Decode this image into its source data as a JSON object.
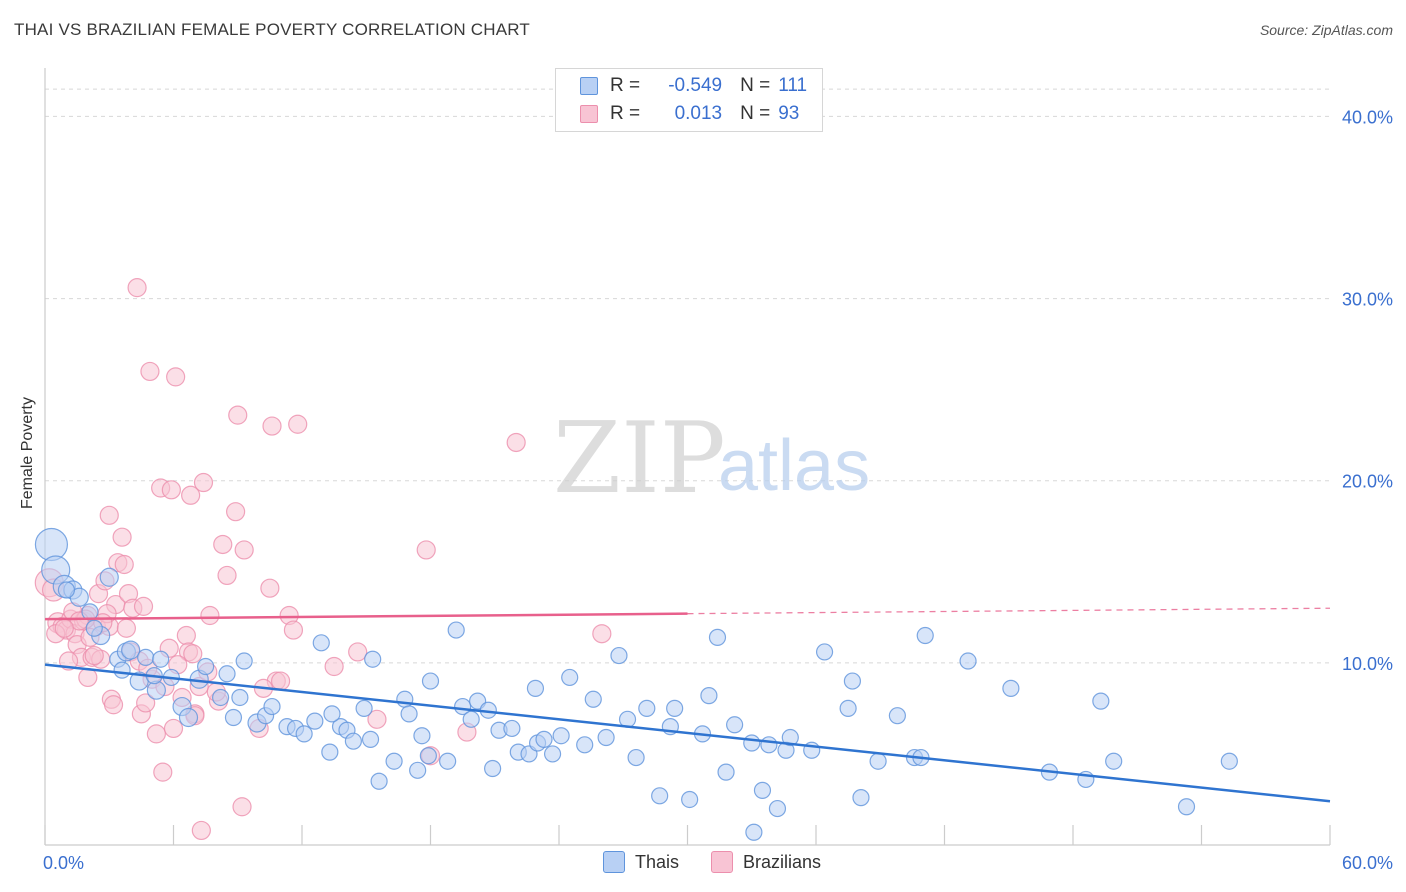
{
  "title": "THAI VS BRAZILIAN FEMALE POVERTY CORRELATION CHART",
  "source": "Source: ZipAtlas.com",
  "watermark": {
    "zip": "ZIP",
    "atlas": "atlas"
  },
  "legend_top": [
    {
      "r_label": "R =",
      "r_value": "-0.549",
      "n_label": "N =",
      "n_value": "111"
    },
    {
      "r_label": "R =",
      "r_value": "0.013",
      "n_label": "N =",
      "n_value": "93"
    }
  ],
  "legend_bottom": [
    {
      "label": "Thais"
    },
    {
      "label": "Brazilians"
    }
  ],
  "colors": {
    "thais_fill": "#b8d0f4",
    "thais_stroke": "#5f94dc",
    "thais_line": "#2f74d0",
    "braz_fill": "#f8c4d4",
    "braz_stroke": "#ec8fad",
    "braz_line": "#e8608c",
    "grid": "#d8d8d8",
    "tick_label": "#3a6fcf",
    "watermark": "#cfcfcf",
    "watermark_atlas": "#b9cfee"
  },
  "chart_data": {
    "type": "scatter",
    "title": "THAI VS BRAZILIAN FEMALE POVERTY CORRELATION CHART",
    "xlabel": "",
    "ylabel": "Female Poverty",
    "xlim": [
      0,
      60
    ],
    "ylim": [
      0,
      42
    ],
    "x_tick_labels": [
      "0.0%",
      "60.0%"
    ],
    "y_ticks": [
      10,
      20,
      30,
      40
    ],
    "y_tick_labels": [
      "10.0%",
      "20.0%",
      "30.0%",
      "40.0%"
    ],
    "grid": true,
    "legend": "top-center",
    "series": [
      {
        "name": "Thais",
        "r": -0.549,
        "n": 111,
        "trend": {
          "x": [
            0,
            60
          ],
          "y": [
            9.9,
            2.4
          ],
          "dashed_from": null
        },
        "points": [
          [
            0.3,
            16.5,
            16
          ],
          [
            0.5,
            15.1,
            14
          ],
          [
            0.9,
            14.2,
            11
          ],
          [
            1.3,
            14.0,
            9
          ],
          [
            1.6,
            13.6,
            9
          ],
          [
            2.1,
            12.8,
            8
          ],
          [
            2.6,
            11.5,
            9
          ],
          [
            3.0,
            14.7,
            9
          ],
          [
            3.4,
            10.2,
            8
          ],
          [
            3.8,
            10.6,
            9
          ],
          [
            4.0,
            10.7,
            9
          ],
          [
            4.4,
            9.0,
            9
          ],
          [
            4.7,
            10.3,
            8
          ],
          [
            5.2,
            8.5,
            9
          ],
          [
            5.4,
            10.2,
            8
          ],
          [
            5.9,
            9.2,
            8
          ],
          [
            6.4,
            7.6,
            9
          ],
          [
            6.7,
            7.0,
            9
          ],
          [
            7.2,
            9.1,
            9
          ],
          [
            7.5,
            9.8,
            8
          ],
          [
            8.2,
            8.1,
            8
          ],
          [
            8.8,
            7.0,
            8
          ],
          [
            9.1,
            8.1,
            8
          ],
          [
            9.3,
            10.1,
            8
          ],
          [
            9.9,
            6.7,
            9
          ],
          [
            10.3,
            7.1,
            8
          ],
          [
            10.6,
            7.6,
            8
          ],
          [
            11.3,
            6.5,
            8
          ],
          [
            11.7,
            6.4,
            8
          ],
          [
            12.1,
            6.1,
            8
          ],
          [
            12.6,
            6.8,
            8
          ],
          [
            12.9,
            11.1,
            8
          ],
          [
            13.3,
            5.1,
            8
          ],
          [
            13.8,
            6.5,
            8
          ],
          [
            14.1,
            6.3,
            8
          ],
          [
            14.4,
            5.7,
            8
          ],
          [
            14.9,
            7.5,
            8
          ],
          [
            15.2,
            5.8,
            8
          ],
          [
            15.3,
            10.2,
            8
          ],
          [
            15.6,
            3.5,
            8
          ],
          [
            16.3,
            4.6,
            8
          ],
          [
            16.8,
            8.0,
            8
          ],
          [
            17.0,
            7.2,
            8
          ],
          [
            17.4,
            4.1,
            8
          ],
          [
            17.9,
            4.9,
            8
          ],
          [
            18.0,
            9.0,
            8
          ],
          [
            18.8,
            4.6,
            8
          ],
          [
            19.2,
            11.8,
            8
          ],
          [
            19.5,
            7.6,
            8
          ],
          [
            19.9,
            6.9,
            8
          ],
          [
            20.2,
            7.9,
            8
          ],
          [
            20.7,
            7.4,
            8
          ],
          [
            20.9,
            4.2,
            8
          ],
          [
            21.2,
            6.3,
            8
          ],
          [
            21.8,
            6.4,
            8
          ],
          [
            22.1,
            5.1,
            8
          ],
          [
            22.6,
            5.0,
            8
          ],
          [
            23.0,
            5.6,
            8
          ],
          [
            23.3,
            5.8,
            8
          ],
          [
            23.7,
            5.0,
            8
          ],
          [
            24.1,
            6.0,
            8
          ],
          [
            24.5,
            9.2,
            8
          ],
          [
            25.2,
            5.5,
            8
          ],
          [
            25.6,
            8.0,
            8
          ],
          [
            26.2,
            5.9,
            8
          ],
          [
            26.8,
            10.4,
            8
          ],
          [
            27.2,
            6.9,
            8
          ],
          [
            27.6,
            4.8,
            8
          ],
          [
            28.1,
            7.5,
            8
          ],
          [
            28.7,
            2.7,
            8
          ],
          [
            29.2,
            6.5,
            8
          ],
          [
            29.4,
            7.5,
            8
          ],
          [
            30.1,
            2.5,
            8
          ],
          [
            30.7,
            6.1,
            8
          ],
          [
            31.4,
            11.4,
            8
          ],
          [
            31.8,
            4.0,
            8
          ],
          [
            32.2,
            6.6,
            8
          ],
          [
            33.0,
            5.6,
            8
          ],
          [
            33.5,
            3.0,
            8
          ],
          [
            33.8,
            5.5,
            8
          ],
          [
            34.2,
            2.0,
            8
          ],
          [
            34.6,
            5.2,
            8
          ],
          [
            34.8,
            5.9,
            8
          ],
          [
            35.8,
            5.2,
            8
          ],
          [
            36.4,
            10.6,
            8
          ],
          [
            37.5,
            7.5,
            8
          ],
          [
            37.7,
            9.0,
            8
          ],
          [
            38.1,
            2.6,
            8
          ],
          [
            38.9,
            4.6,
            8
          ],
          [
            39.8,
            7.1,
            8
          ],
          [
            40.6,
            4.8,
            8
          ],
          [
            40.9,
            4.8,
            8
          ],
          [
            41.1,
            11.5,
            8
          ],
          [
            43.1,
            10.1,
            8
          ],
          [
            45.1,
            8.6,
            8
          ],
          [
            46.9,
            4.0,
            8
          ],
          [
            48.6,
            3.6,
            8
          ],
          [
            49.3,
            7.9,
            8
          ],
          [
            49.9,
            4.6,
            8
          ],
          [
            53.3,
            2.1,
            8
          ],
          [
            55.3,
            4.6,
            8
          ],
          [
            33.1,
            0.7,
            8
          ],
          [
            5.1,
            9.3,
            8
          ],
          [
            2.3,
            11.9,
            8
          ],
          [
            1.0,
            14.0,
            8
          ],
          [
            3.6,
            9.6,
            8
          ],
          [
            8.5,
            9.4,
            8
          ],
          [
            13.4,
            7.2,
            8
          ],
          [
            17.6,
            6.0,
            8
          ],
          [
            22.9,
            8.6,
            8
          ],
          [
            31.0,
            8.2,
            8
          ]
        ]
      },
      {
        "name": "Brazilians",
        "r": 0.013,
        "n": 93,
        "trend": {
          "x": [
            0,
            60
          ],
          "y": [
            12.4,
            13.0
          ],
          "dashed_from": 30
        },
        "points": [
          [
            0.2,
            14.4,
            14
          ],
          [
            0.4,
            14.0,
            11
          ],
          [
            0.6,
            12.2,
            10
          ],
          [
            0.8,
            12.0,
            9
          ],
          [
            1.0,
            11.8,
            9
          ],
          [
            1.2,
            12.4,
            9
          ],
          [
            1.4,
            11.6,
            9
          ],
          [
            1.5,
            11.0,
            9
          ],
          [
            1.7,
            10.3,
            9
          ],
          [
            1.8,
            12.3,
            9
          ],
          [
            2.0,
            12.6,
            9
          ],
          [
            2.2,
            10.3,
            9
          ],
          [
            2.4,
            12.0,
            9
          ],
          [
            2.5,
            13.8,
            9
          ],
          [
            2.6,
            10.2,
            9
          ],
          [
            2.8,
            14.5,
            9
          ],
          [
            3.0,
            12.0,
            9
          ],
          [
            3.1,
            8.0,
            9
          ],
          [
            3.3,
            13.2,
            9
          ],
          [
            3.4,
            15.5,
            9
          ],
          [
            3.6,
            16.9,
            9
          ],
          [
            3.8,
            11.9,
            9
          ],
          [
            3.9,
            13.8,
            9
          ],
          [
            4.0,
            10.6,
            9
          ],
          [
            4.1,
            13.0,
            9
          ],
          [
            4.3,
            30.6,
            9
          ],
          [
            4.5,
            7.2,
            9
          ],
          [
            4.7,
            7.8,
            9
          ],
          [
            4.9,
            26.0,
            9
          ],
          [
            5.0,
            9.1,
            9
          ],
          [
            5.2,
            6.1,
            9
          ],
          [
            5.4,
            19.6,
            9
          ],
          [
            5.6,
            8.7,
            9
          ],
          [
            5.8,
            10.8,
            9
          ],
          [
            5.9,
            19.5,
            9
          ],
          [
            6.0,
            6.4,
            9
          ],
          [
            6.1,
            25.7,
            9
          ],
          [
            6.4,
            8.1,
            9
          ],
          [
            6.6,
            11.5,
            9
          ],
          [
            6.7,
            10.6,
            9
          ],
          [
            6.8,
            19.2,
            9
          ],
          [
            7.0,
            7.2,
            9
          ],
          [
            7.2,
            8.7,
            9
          ],
          [
            7.4,
            19.9,
            9
          ],
          [
            7.6,
            9.5,
            9
          ],
          [
            7.7,
            12.6,
            9
          ],
          [
            8.1,
            7.9,
            9
          ],
          [
            8.3,
            16.5,
            9
          ],
          [
            8.5,
            14.8,
            9
          ],
          [
            8.9,
            18.3,
            9
          ],
          [
            9.0,
            23.6,
            9
          ],
          [
            9.3,
            16.2,
            9
          ],
          [
            10.0,
            6.4,
            9
          ],
          [
            10.5,
            14.1,
            9
          ],
          [
            10.6,
            23.0,
            9
          ],
          [
            10.8,
            9.0,
            9
          ],
          [
            11.4,
            12.6,
            9
          ],
          [
            11.6,
            11.8,
            9
          ],
          [
            11.8,
            23.1,
            9
          ],
          [
            13.5,
            9.8,
            9
          ],
          [
            14.6,
            10.6,
            9
          ],
          [
            15.5,
            6.9,
            9
          ],
          [
            17.8,
            16.2,
            9
          ],
          [
            18.0,
            4.9,
            9
          ],
          [
            19.7,
            6.2,
            9
          ],
          [
            22.0,
            22.1,
            9
          ],
          [
            26.0,
            11.6,
            9
          ],
          [
            3.0,
            18.1,
            9
          ],
          [
            2.9,
            12.7,
            9
          ],
          [
            4.6,
            13.1,
            9
          ],
          [
            5.5,
            4.0,
            9
          ],
          [
            7.3,
            0.8,
            9
          ],
          [
            9.2,
            2.1,
            9
          ],
          [
            1.1,
            10.1,
            9
          ],
          [
            2.0,
            9.2,
            9
          ],
          [
            3.7,
            15.4,
            9
          ],
          [
            1.3,
            12.8,
            9
          ],
          [
            0.5,
            11.6,
            9
          ],
          [
            1.9,
            12.4,
            9
          ],
          [
            2.7,
            12.2,
            9
          ],
          [
            4.4,
            10.1,
            9
          ],
          [
            6.2,
            9.9,
            9
          ],
          [
            7.0,
            7.1,
            9
          ],
          [
            8.0,
            8.4,
            9
          ],
          [
            3.2,
            7.7,
            9
          ],
          [
            10.2,
            8.6,
            9
          ],
          [
            1.6,
            12.3,
            9
          ],
          [
            2.1,
            11.4,
            9
          ],
          [
            0.9,
            11.9,
            9
          ],
          [
            2.3,
            10.4,
            9
          ],
          [
            11.0,
            9.0,
            9
          ],
          [
            4.8,
            9.7,
            9
          ],
          [
            6.9,
            10.5,
            9
          ]
        ]
      }
    ]
  }
}
